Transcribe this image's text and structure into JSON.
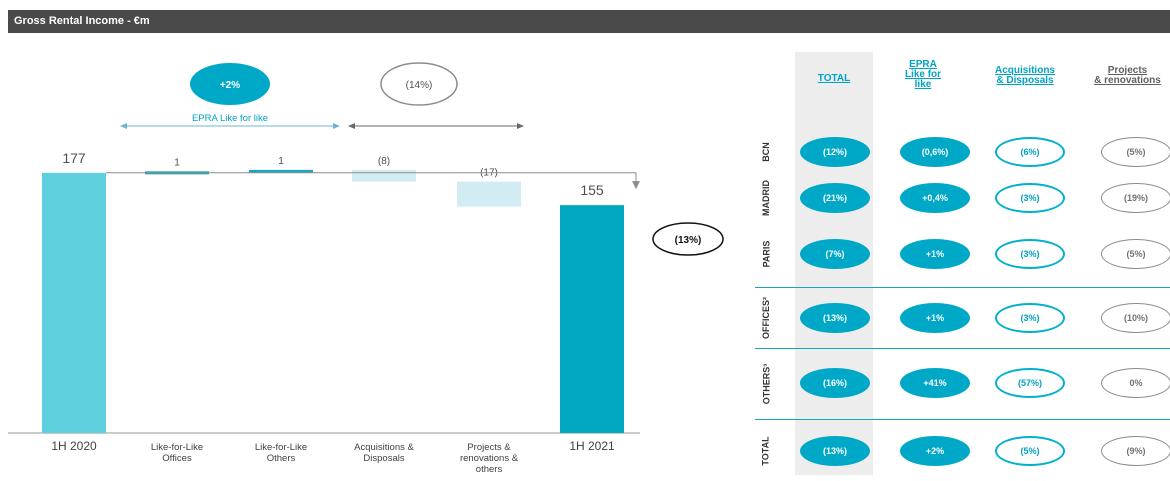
{
  "header": {
    "title": "Gross Rental Income - €m"
  },
  "chart_data": {
    "type": "bar",
    "subtype": "waterfall",
    "categories": [
      "1H 2020",
      "Like-for-Like Offices",
      "Like-for-Like Others",
      "Acquisitions & Disposals",
      "Projects & renovations & others",
      "1H 2021"
    ],
    "category_lines": [
      [
        "1H 2020"
      ],
      [
        "Like-for-Like",
        "Offices"
      ],
      [
        "Like-for-Like",
        "Others"
      ],
      [
        "Acquisitions &",
        "Disposals"
      ],
      [
        "Projects &",
        "renovations &",
        "others"
      ],
      [
        "1H 2021"
      ]
    ],
    "values": [
      177,
      1,
      1,
      -8,
      -17,
      155
    ],
    "value_labels": [
      "177",
      "1",
      "1",
      "(8)",
      "(17)",
      "155"
    ],
    "bar_kinds": [
      "total",
      "increase",
      "increase",
      "decrease",
      "decrease",
      "total"
    ],
    "ylim": [
      0,
      200
    ],
    "annotations": {
      "epra_badge": "+2%",
      "epra_label": "EPRA Like for like",
      "acq_proj_badge": "(14%)",
      "total_change_badge": "(13%)"
    },
    "colors": {
      "start_total": "#5ecfdd",
      "end_total": "#00a8c0",
      "increase": "#1aa7bf",
      "decrease": "#d3ecf3",
      "badge": "#00a8c8",
      "arrow_blue": "#6db3d8"
    }
  },
  "table": {
    "columns": [
      [
        "TOTAL"
      ],
      [
        "EPRA",
        "Like for",
        "like"
      ],
      [
        "Acquisitions",
        "& Disposals"
      ],
      [
        "Projects",
        "& renovations"
      ]
    ],
    "rows": [
      {
        "label": "BCN",
        "values": [
          "(12%)",
          "(0,6%)",
          "(6%)",
          "(5%)"
        ]
      },
      {
        "label": "MADRID",
        "values": [
          "(21%)",
          "+0,4%",
          "(3%)",
          "(19%)"
        ]
      },
      {
        "label": "PARIS",
        "values": [
          "(7%)",
          "+1%",
          "(3%)",
          "(5%)"
        ]
      },
      {
        "label": "OFFICES²",
        "values": [
          "(13%)",
          "+1%",
          "(3%)",
          "(10%)"
        ]
      },
      {
        "label": "OTHERS³",
        "values": [
          "(16%)",
          "+41%",
          "(57%)",
          "0%"
        ]
      },
      {
        "label": "TOTAL",
        "values": [
          "(13%)",
          "+2%",
          "(5%)",
          "(9%)"
        ]
      }
    ],
    "colors": {
      "header_text": "#00a3c4",
      "projects_header_text": "#606060",
      "separator": "#19a3c0"
    }
  }
}
